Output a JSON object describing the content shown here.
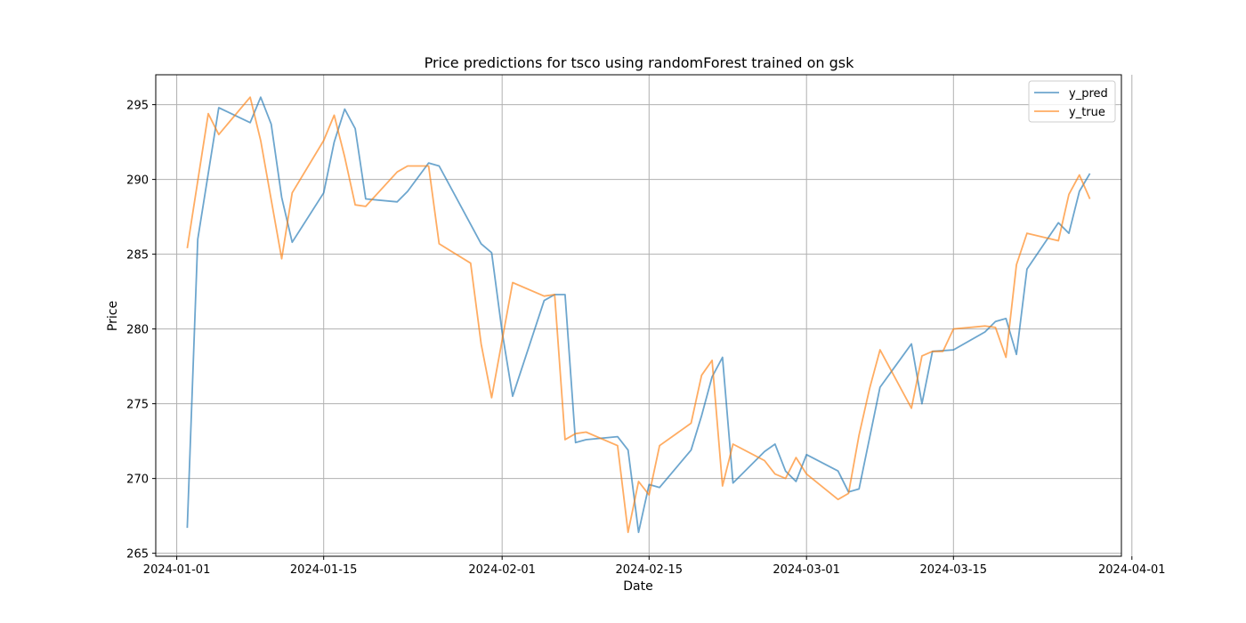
{
  "chart_data": {
    "type": "line",
    "title": "Price predictions for tsco using randomForest trained on gsk",
    "xlabel": "Date",
    "ylabel": "Price",
    "xlim": [
      "2023-12-30",
      "2024-03-31"
    ],
    "ylim": [
      264.8,
      297
    ],
    "grid": true,
    "legend_position": "upper right",
    "x_ticks": [
      "2024-01-01",
      "2024-01-15",
      "2024-02-01",
      "2024-02-15",
      "2024-03-01",
      "2024-03-15",
      "2024-04-01"
    ],
    "y_ticks": [
      265,
      270,
      275,
      280,
      285,
      290,
      295
    ],
    "series": [
      {
        "name": "y_pred",
        "color": "#1f77b4",
        "points": [
          [
            "2024-01-02",
            266.7
          ],
          [
            "2024-01-03",
            286.0
          ],
          [
            "2024-01-05",
            294.8
          ],
          [
            "2024-01-08",
            293.8
          ],
          [
            "2024-01-09",
            295.5
          ],
          [
            "2024-01-10",
            293.7
          ],
          [
            "2024-01-11",
            288.8
          ],
          [
            "2024-01-12",
            285.8
          ],
          [
            "2024-01-15",
            289.1
          ],
          [
            "2024-01-16",
            292.5
          ],
          [
            "2024-01-17",
            294.7
          ],
          [
            "2024-01-18",
            293.4
          ],
          [
            "2024-01-19",
            288.7
          ],
          [
            "2024-01-22",
            288.5
          ],
          [
            "2024-01-23",
            289.2
          ],
          [
            "2024-01-25",
            291.1
          ],
          [
            "2024-01-26",
            290.9
          ],
          [
            "2024-01-30",
            285.7
          ],
          [
            "2024-01-31",
            285.1
          ],
          [
            "2024-02-01",
            279.8
          ],
          [
            "2024-02-02",
            275.5
          ],
          [
            "2024-02-05",
            281.9
          ],
          [
            "2024-02-06",
            282.3
          ],
          [
            "2024-02-07",
            282.3
          ],
          [
            "2024-02-08",
            272.4
          ],
          [
            "2024-02-09",
            272.6
          ],
          [
            "2024-02-12",
            272.8
          ],
          [
            "2024-02-13",
            271.9
          ],
          [
            "2024-02-14",
            266.4
          ],
          [
            "2024-02-15",
            269.6
          ],
          [
            "2024-02-16",
            269.4
          ],
          [
            "2024-02-19",
            271.9
          ],
          [
            "2024-02-20",
            274.2
          ],
          [
            "2024-02-21",
            276.8
          ],
          [
            "2024-02-22",
            278.1
          ],
          [
            "2024-02-23",
            269.7
          ],
          [
            "2024-02-26",
            271.8
          ],
          [
            "2024-02-27",
            272.3
          ],
          [
            "2024-02-28",
            270.5
          ],
          [
            "2024-02-29",
            269.8
          ],
          [
            "2024-03-01",
            271.6
          ],
          [
            "2024-03-04",
            270.5
          ],
          [
            "2024-03-05",
            269.1
          ],
          [
            "2024-03-06",
            269.3
          ],
          [
            "2024-03-08",
            276.1
          ],
          [
            "2024-03-11",
            279.0
          ],
          [
            "2024-03-12",
            275.0
          ],
          [
            "2024-03-13",
            278.5
          ],
          [
            "2024-03-15",
            278.6
          ],
          [
            "2024-03-18",
            279.8
          ],
          [
            "2024-03-19",
            280.5
          ],
          [
            "2024-03-20",
            280.7
          ],
          [
            "2024-03-21",
            278.3
          ],
          [
            "2024-03-22",
            284.0
          ],
          [
            "2024-03-25",
            287.1
          ],
          [
            "2024-03-26",
            286.4
          ],
          [
            "2024-03-27",
            289.2
          ],
          [
            "2024-03-28",
            290.4
          ]
        ]
      },
      {
        "name": "y_true",
        "color": "#ff7f0e",
        "points": [
          [
            "2024-01-02",
            285.4
          ],
          [
            "2024-01-04",
            294.4
          ],
          [
            "2024-01-05",
            293.0
          ],
          [
            "2024-01-08",
            295.5
          ],
          [
            "2024-01-09",
            292.6
          ],
          [
            "2024-01-11",
            284.7
          ],
          [
            "2024-01-12",
            289.1
          ],
          [
            "2024-01-15",
            292.6
          ],
          [
            "2024-01-16",
            294.3
          ],
          [
            "2024-01-17",
            291.5
          ],
          [
            "2024-01-18",
            288.3
          ],
          [
            "2024-01-19",
            288.2
          ],
          [
            "2024-01-22",
            290.5
          ],
          [
            "2024-01-23",
            290.9
          ],
          [
            "2024-01-25",
            290.9
          ],
          [
            "2024-01-26",
            285.7
          ],
          [
            "2024-01-29",
            284.4
          ],
          [
            "2024-01-30",
            279.0
          ],
          [
            "2024-01-31",
            275.4
          ],
          [
            "2024-02-02",
            283.1
          ],
          [
            "2024-02-05",
            282.2
          ],
          [
            "2024-02-06",
            282.3
          ],
          [
            "2024-02-07",
            272.6
          ],
          [
            "2024-02-08",
            273.0
          ],
          [
            "2024-02-09",
            273.1
          ],
          [
            "2024-02-12",
            272.2
          ],
          [
            "2024-02-13",
            266.4
          ],
          [
            "2024-02-14",
            269.8
          ],
          [
            "2024-02-15",
            268.9
          ],
          [
            "2024-02-16",
            272.2
          ],
          [
            "2024-02-19",
            273.7
          ],
          [
            "2024-02-20",
            276.9
          ],
          [
            "2024-02-21",
            277.9
          ],
          [
            "2024-02-22",
            269.5
          ],
          [
            "2024-02-23",
            272.3
          ],
          [
            "2024-02-26",
            271.2
          ],
          [
            "2024-02-27",
            270.3
          ],
          [
            "2024-02-28",
            270.0
          ],
          [
            "2024-02-29",
            271.4
          ],
          [
            "2024-03-01",
            270.3
          ],
          [
            "2024-03-04",
            268.6
          ],
          [
            "2024-03-05",
            269.0
          ],
          [
            "2024-03-06",
            272.9
          ],
          [
            "2024-03-07",
            276.0
          ],
          [
            "2024-03-08",
            278.6
          ],
          [
            "2024-03-11",
            274.7
          ],
          [
            "2024-03-12",
            278.2
          ],
          [
            "2024-03-13",
            278.5
          ],
          [
            "2024-03-14",
            278.5
          ],
          [
            "2024-03-15",
            280.0
          ],
          [
            "2024-03-18",
            280.2
          ],
          [
            "2024-03-19",
            280.1
          ],
          [
            "2024-03-20",
            278.1
          ],
          [
            "2024-03-21",
            284.3
          ],
          [
            "2024-03-22",
            286.4
          ],
          [
            "2024-03-25",
            285.9
          ],
          [
            "2024-03-26",
            289.0
          ],
          [
            "2024-03-27",
            290.3
          ],
          [
            "2024-03-28",
            288.7
          ]
        ]
      }
    ]
  }
}
